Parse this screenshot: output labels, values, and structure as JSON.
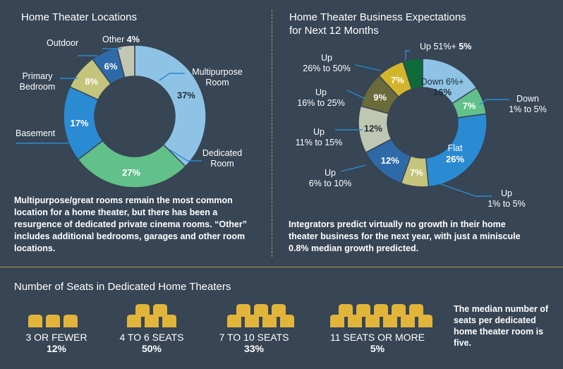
{
  "locations": {
    "title": "Home Theater Locations",
    "note": "Multipurpose/great rooms remain the most common location for a home theater, but there has been a resurgence of dedicated private cinema rooms. “Other” includes additional bedrooms, garages and other room locations.",
    "labels": {
      "multipurpose": "Multipurpose\nRoom",
      "dedicated": "Dedicated\nRoom",
      "basement": "Basement",
      "primary": "Primary\nBedroom",
      "outdoor": "Outdoor",
      "other": "Other",
      "other_pct": "4%"
    }
  },
  "expectations": {
    "title": "Home Theater Business Expectations\nfor Next 12 Months",
    "note": "Integrators predict virtually no growth in their home theater business for the next year, with just a miniscule 0.8% median growth predicted.",
    "labels": {
      "up51": "Up 51%+",
      "up51_pct": "5%",
      "up26": "Up\n26% to 50%",
      "up16": "Up\n16% to 25%",
      "up11": "Up\n11% to 15%",
      "up6": "Up\n6% to 10%",
      "up1": "Up\n1% to 5%",
      "down1": "Down\n1% to 5%",
      "down6": "Down 6%+",
      "flat": "Flat"
    }
  },
  "seats": {
    "title": "Number of Seats in Dedicated Home Theaters",
    "groups": [
      {
        "label": "3 OR FEWER",
        "pct": "12%"
      },
      {
        "label": "4 TO 6 SEATS",
        "pct": "50%"
      },
      {
        "label": "7 TO 10 SEATS",
        "pct": "33%"
      },
      {
        "label": "11 SEATS OR MORE",
        "pct": "5%"
      }
    ],
    "median_note": "The median number of seats per dedicated home theater room is five."
  },
  "colors": {
    "background": "#374554",
    "divider": "#b99b4c",
    "seat": "#e2b53a"
  },
  "chart_data": [
    {
      "type": "pie",
      "title": "Home Theater Locations",
      "categories": [
        "Multipurpose Room",
        "Dedicated Room",
        "Basement",
        "Primary Bedroom",
        "Outdoor",
        "Other"
      ],
      "values": [
        37,
        27,
        17,
        8,
        6,
        4
      ],
      "value_labels": [
        "37%",
        "27%",
        "17%",
        "8%",
        "6%",
        ""
      ],
      "colors": [
        "#8ec3e5",
        "#62c08a",
        "#2a8bd3",
        "#c4c47c",
        "#2f6aa8",
        "#c4c6b4"
      ],
      "donut": true
    },
    {
      "type": "pie",
      "title": "Home Theater Business Expectations for Next 12 Months",
      "categories": [
        "Down 6%+",
        "Down 1% to 5%",
        "Flat",
        "Up 1% to 5%",
        "Up 6% to 10%",
        "Up 11% to 15%",
        "Up 16% to 25%",
        "Up 26% to 50%",
        "Up 51%+"
      ],
      "values": [
        16,
        7,
        26,
        7,
        12,
        12,
        9,
        7,
        5
      ],
      "value_labels": [
        "16%",
        "7%",
        "26%",
        "7%",
        "12%",
        "12%",
        "9%",
        "7%",
        ""
      ],
      "colors": [
        "#8ec3e5",
        "#62c08a",
        "#2a8bd3",
        "#c4c47c",
        "#2f6aa8",
        "#bfc7b3",
        "#6a6a3a",
        "#d3b52c",
        "#0f6b3a"
      ],
      "donut": true
    }
  ]
}
